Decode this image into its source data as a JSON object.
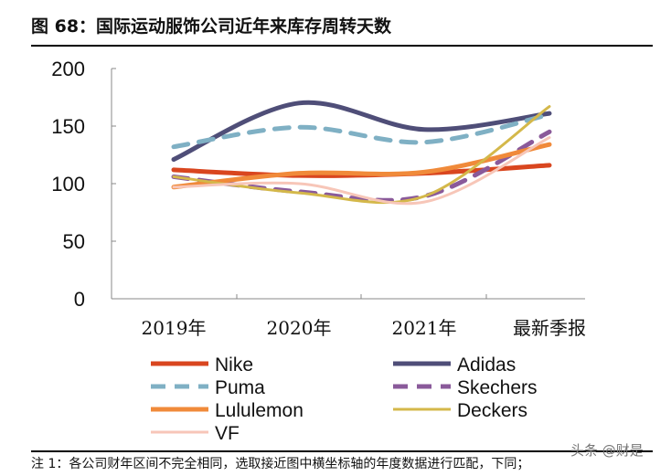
{
  "title": "图 68：国际运动服饰公司近年来库存周转天数",
  "note": "注 1：各公司财年区间不完全相同，选取接近图中横坐标轴的年度数据进行匹配，下同；",
  "watermark": "头条 @财是",
  "chart_data": {
    "type": "line",
    "categories": [
      "2019年",
      "2020年",
      "2021年",
      "最新季报"
    ],
    "ylim": [
      0,
      200
    ],
    "yticks": [
      0,
      50,
      100,
      150,
      200
    ],
    "grid": false,
    "legend_placement": "bottom",
    "series": [
      {
        "name": "Nike",
        "values": [
          112,
          107,
          109,
          116
        ],
        "color": "#d9461f",
        "dash": false
      },
      {
        "name": "Adidas",
        "values": [
          121,
          170,
          147,
          161
        ],
        "color": "#4f4e78",
        "dash": false
      },
      {
        "name": "Puma",
        "values": [
          132,
          149,
          136,
          160
        ],
        "color": "#7fb0c4",
        "dash": true
      },
      {
        "name": "Skechers",
        "values": [
          106,
          93,
          89,
          145
        ],
        "color": "#8a5a9a",
        "dash": true
      },
      {
        "name": "Lululemon",
        "values": [
          97,
          109,
          110,
          134
        ],
        "color": "#f08a3a",
        "dash": false
      },
      {
        "name": "Deckers",
        "values": [
          106,
          92,
          89,
          167
        ],
        "color": "#d4b84a",
        "dash": false
      },
      {
        "name": "VF",
        "values": [
          97,
          100,
          84,
          140
        ],
        "color": "#f7c6b8",
        "dash": false
      }
    ]
  }
}
